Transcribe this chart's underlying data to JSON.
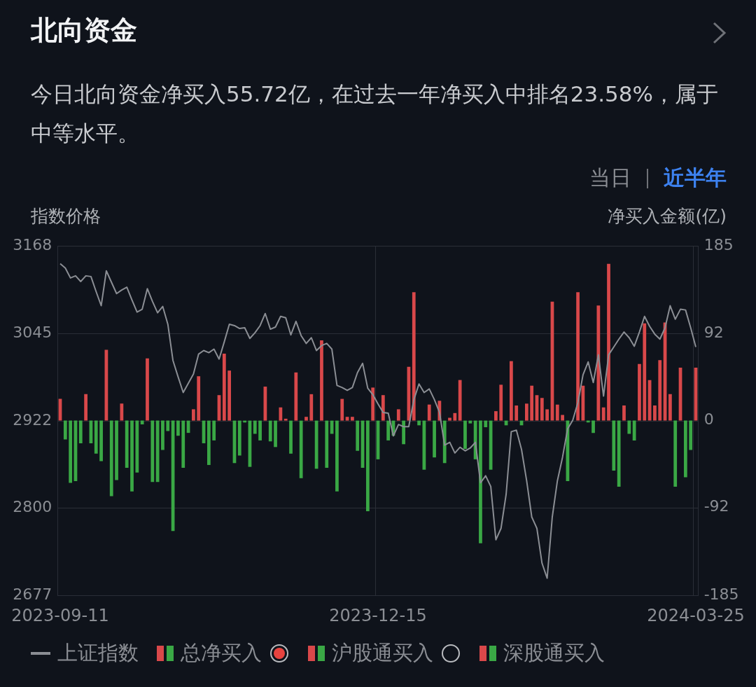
{
  "chart_data": {
    "type": "bar",
    "title": "北向资金",
    "subtitle": "今日北向资金净买入55.72亿，在过去一年净买入中排名23.58%，属于中等水平。",
    "ylabel": "指数价格",
    "y2label": "净买入金额(亿)",
    "annotations": [
      "当日",
      "近半年",
      "沪股通买入",
      "深股通买入"
    ],
    "categories": [
      "2023-09-11",
      null,
      null,
      null,
      null,
      null,
      null,
      null,
      null,
      null,
      null,
      null,
      null,
      null,
      null,
      null,
      null,
      null,
      null,
      null,
      null,
      null,
      null,
      null,
      null,
      null,
      null,
      null,
      null,
      null,
      null,
      null,
      null,
      null,
      null,
      null,
      null,
      null,
      null,
      null,
      null,
      null,
      null,
      null,
      null,
      null,
      null,
      null,
      null,
      null,
      null,
      null,
      null,
      null,
      null,
      null,
      null,
      null,
      null,
      null,
      null,
      null,
      "2023-12-15",
      null,
      null,
      null,
      null,
      null,
      null,
      null,
      null,
      null,
      null,
      null,
      null,
      null,
      null,
      null,
      null,
      null,
      null,
      null,
      null,
      null,
      null,
      null,
      null,
      null,
      null,
      null,
      null,
      null,
      null,
      null,
      null,
      null,
      null,
      null,
      null,
      null,
      null,
      null,
      null,
      null,
      null,
      null,
      null,
      null,
      null,
      null,
      null,
      null,
      null,
      null,
      null,
      null,
      null,
      null,
      null,
      null,
      null,
      null,
      null,
      null,
      "2024-03-25"
    ],
    "series": [
      {
        "name": "上证指数",
        "type": "line",
        "color": "#8b8e94",
        "values": [
          3143,
          3137,
          3123,
          3126,
          3118,
          3126,
          3125,
          3104,
          3084,
          3133,
          3117,
          3101,
          3106,
          3110,
          3092,
          3075,
          3079,
          3108,
          3090,
          3074,
          3083,
          3058,
          3007,
          2984,
          2962,
          2975,
          2988,
          3016,
          3021,
          3018,
          3023,
          3009,
          3033,
          3058,
          3056,
          3052,
          3053,
          3038,
          3046,
          3056,
          3073,
          3051,
          3054,
          3069,
          3067,
          3043,
          3062,
          3042,
          3031,
          3039,
          3021,
          3028,
          3031,
          3023,
          2972,
          2969,
          2965,
          2969,
          2990,
          3003,
          2968,
          2959,
          2946,
          2934,
          2933,
          2901,
          2917,
          2914,
          2914,
          2952,
          2974,
          2962,
          2967,
          2952,
          2934,
          2888,
          2892,
          2877,
          2885,
          2880,
          2884,
          2892,
          2835,
          2845,
          2830,
          2755,
          2771,
          2819,
          2907,
          2909,
          2882,
          2838,
          2787,
          2771,
          2722,
          2701,
          2787,
          2838,
          2871,
          2911,
          2923,
          2948,
          2987,
          3005,
          2976,
          3015,
          2957,
          3015,
          3026,
          3037,
          3047,
          3039,
          3027,
          3047,
          3069,
          3055,
          3044,
          3037,
          3053,
          3084,
          3065,
          3079,
          3078,
          3053,
          3026
        ]
      },
      {
        "name": "总净买入",
        "axis": "y2",
        "values": [
          23,
          -20,
          -66,
          -64,
          -24,
          28,
          -24,
          -35,
          -43,
          75,
          -80,
          -63,
          18,
          -50,
          -75,
          -55,
          -4,
          66,
          -65,
          -65,
          -31,
          -11,
          -117,
          -16,
          -50,
          -13,
          12,
          47,
          -24,
          -47,
          -21,
          27,
          71,
          53,
          -45,
          -37,
          -2,
          -49,
          -14,
          -21,
          36,
          -22,
          -28,
          14,
          2,
          -35,
          51,
          -61,
          4,
          28,
          -51,
          85,
          -50,
          -14,
          -75,
          23,
          4,
          4,
          -32,
          -50,
          -96,
          35,
          -41,
          27,
          -21,
          -16,
          12,
          -25,
          57,
          136,
          -5,
          -52,
          17,
          -39,
          21,
          -45,
          3,
          8,
          43,
          -30,
          -3,
          -41,
          -130,
          -7,
          -52,
          10,
          38,
          -5,
          63,
          16,
          -5,
          18,
          37,
          27,
          24,
          12,
          126,
          17,
          6,
          -64,
          0,
          136,
          37,
          -2,
          -13,
          122,
          14,
          166,
          -53,
          -70,
          16,
          -14,
          -21,
          60,
          103,
          43,
          16,
          64,
          104,
          28,
          -70,
          56,
          -60,
          -31,
          56
        ],
        "colors": [
          "#d9484a",
          "#3aa845",
          "#3aa845",
          "#3aa845",
          "#3aa845",
          "#d9484a",
          "#3aa845",
          "#3aa845",
          "#3aa845",
          "#d9484a",
          "#3aa845",
          "#3aa845",
          "#d9484a",
          "#3aa845",
          "#3aa845",
          "#3aa845",
          "#3aa845",
          "#d9484a",
          "#3aa845",
          "#3aa845",
          "#3aa845",
          "#3aa845",
          "#3aa845",
          "#3aa845",
          "#3aa845",
          "#3aa845",
          "#d9484a",
          "#d9484a",
          "#3aa845",
          "#3aa845",
          "#3aa845",
          "#d9484a",
          "#d9484a",
          "#d9484a",
          "#3aa845",
          "#3aa845",
          "#3aa845",
          "#3aa845",
          "#3aa845",
          "#3aa845",
          "#d9484a",
          "#3aa845",
          "#3aa845",
          "#d9484a",
          "#d9484a",
          "#3aa845",
          "#d9484a",
          "#3aa845",
          "#d9484a",
          "#d9484a",
          "#3aa845",
          "#d9484a",
          "#3aa845",
          "#3aa845",
          "#3aa845",
          "#d9484a",
          "#d9484a",
          "#d9484a",
          "#3aa845",
          "#3aa845",
          "#3aa845",
          "#d9484a",
          "#3aa845",
          "#d9484a",
          "#3aa845",
          "#3aa845",
          "#d9484a",
          "#3aa845",
          "#d9484a",
          "#d9484a",
          "#3aa845",
          "#3aa845",
          "#d9484a",
          "#3aa845",
          "#d9484a",
          "#3aa845",
          "#d9484a",
          "#d9484a",
          "#d9484a",
          "#3aa845",
          "#3aa845",
          "#3aa845",
          "#3aa845",
          "#3aa845",
          "#3aa845",
          "#d9484a",
          "#d9484a",
          "#3aa845",
          "#d9484a",
          "#d9484a",
          "#3aa845",
          "#d9484a",
          "#d9484a",
          "#d9484a",
          "#d9484a",
          "#d9484a",
          "#d9484a",
          "#d9484a",
          "#d9484a",
          "#3aa845",
          "#d9484a",
          "#d9484a",
          "#d9484a",
          "#3aa845",
          "#3aa845",
          "#d9484a",
          "#d9484a",
          "#d9484a",
          "#3aa845",
          "#3aa845",
          "#d9484a",
          "#3aa845",
          "#3aa845",
          "#d9484a",
          "#d9484a",
          "#d9484a",
          "#d9484a",
          "#d9484a",
          "#d9484a",
          "#d9484a",
          "#3aa845",
          "#d9484a",
          "#3aa845",
          "#3aa845",
          "#d9484a"
        ]
      }
    ],
    "ylim": [
      2677,
      3168
    ],
    "yticks": [
      2677,
      2800,
      2922,
      3045,
      3168
    ],
    "y2lim": [
      -185,
      185
    ],
    "y2ticks": [
      -185,
      -92,
      0,
      92,
      185
    ],
    "grid": true,
    "legend": "bottom",
    "marker": "none",
    "line_style": "solid"
  }
}
